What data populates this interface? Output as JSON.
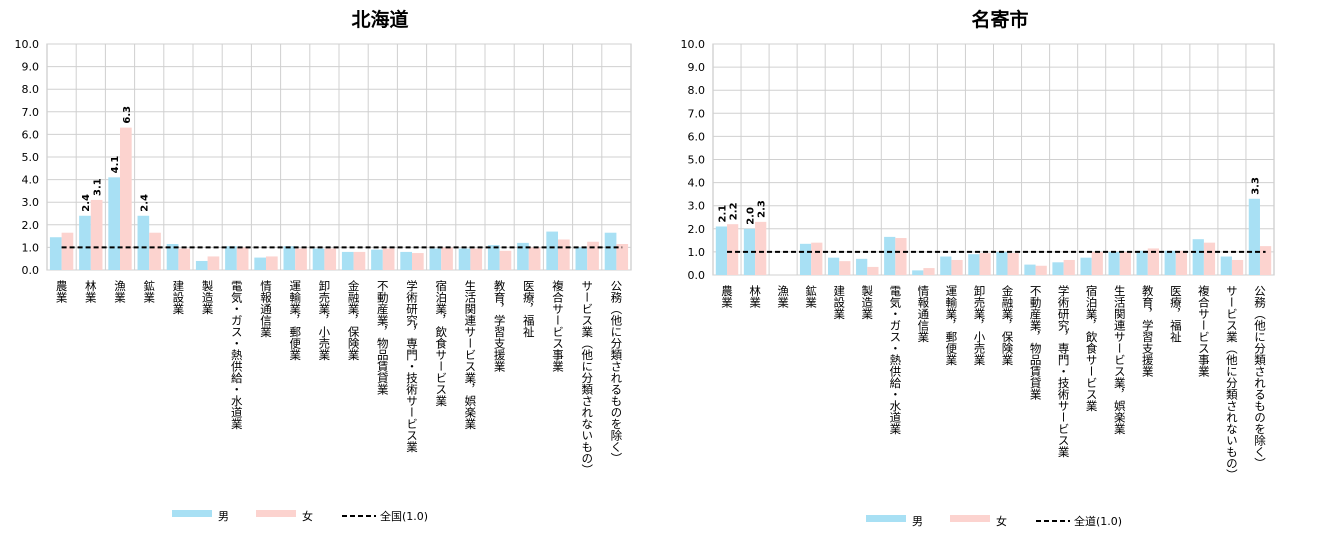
{
  "chart_data": [
    {
      "type": "bar",
      "title": "北海道",
      "categories": [
        "農業",
        "林業",
        "漁業",
        "鉱業",
        "建設業",
        "製造業",
        "電気・ガス・熱供給・水道業",
        "情報通信業",
        "運輸業，郵便業",
        "卸売業，小売業",
        "金融業，保険業",
        "不動産業，物品賃貸業",
        "学術研究，専門・技術サービス業",
        "宿泊業，飲食サービス業",
        "生活関連サービス業，娯楽業",
        "教育，学習支援業",
        "医療，福祉",
        "複合サービス事業",
        "サービス業（他に分類されないもの）",
        "公務（他に分類されるものを除く）"
      ],
      "series": [
        {
          "name": "男",
          "color": "#a8e0f4",
          "values": [
            1.45,
            2.4,
            4.1,
            2.4,
            1.15,
            0.4,
            1.05,
            0.55,
            1.05,
            0.95,
            0.8,
            0.9,
            0.8,
            0.95,
            0.95,
            1.1,
            1.2,
            1.7,
            1.0,
            1.65
          ]
        },
        {
          "name": "女",
          "color": "#fcd3cf",
          "values": [
            1.65,
            3.1,
            6.3,
            1.65,
            0.95,
            0.6,
            1.0,
            0.6,
            0.95,
            0.95,
            0.8,
            0.95,
            0.75,
            1.0,
            0.95,
            0.85,
            1.0,
            1.35,
            1.25,
            1.15
          ]
        }
      ],
      "data_labels": [
        {
          "series": 0,
          "index": 1,
          "text": "2.4"
        },
        {
          "series": 1,
          "index": 1,
          "text": "3.1"
        },
        {
          "series": 0,
          "index": 2,
          "text": "4.1"
        },
        {
          "series": 1,
          "index": 2,
          "text": "6.3"
        },
        {
          "series": 0,
          "index": 3,
          "text": "2.4"
        }
      ],
      "reference_line": {
        "value": 1.0,
        "label": "全国(1.0)"
      },
      "ylim": [
        0,
        10
      ],
      "yticks": [
        "0.0",
        "1.0",
        "2.0",
        "3.0",
        "4.0",
        "5.0",
        "6.0",
        "7.0",
        "8.0",
        "9.0",
        "10.0"
      ],
      "grid": true,
      "legend": "bottom"
    },
    {
      "type": "bar",
      "title": "名寄市",
      "categories": [
        "農業",
        "林業",
        "漁業",
        "鉱業",
        "建設業",
        "製造業",
        "電気・ガス・熱供給・水道業",
        "情報通信業",
        "運輸業，郵便業",
        "卸売業，小売業",
        "金融業，保険業",
        "不動産業，物品賃貸業",
        "学術研究，専門・技術サービス業",
        "宿泊業，飲食サービス業",
        "生活関連サービス業，娯楽業",
        "教育，学習支援業",
        "医療，福祉",
        "複合サービス事業",
        "サービス業（他に分類されないもの）",
        "公務（他に分類されるものを除く）"
      ],
      "series": [
        {
          "name": "男",
          "color": "#a8e0f4",
          "values": [
            2.1,
            2.0,
            0,
            1.35,
            0.75,
            0.7,
            1.65,
            0.2,
            0.8,
            0.9,
            1.0,
            0.45,
            0.55,
            0.75,
            1.0,
            1.05,
            1.05,
            1.55,
            0.8,
            3.3
          ]
        },
        {
          "name": "女",
          "color": "#fcd3cf",
          "values": [
            2.2,
            2.3,
            0,
            1.4,
            0.6,
            0.35,
            1.6,
            0.3,
            0.65,
            0.95,
            0.95,
            0.4,
            0.65,
            1.0,
            1.0,
            1.15,
            1.05,
            1.4,
            0.65,
            1.25
          ]
        }
      ],
      "data_labels": [
        {
          "series": 0,
          "index": 0,
          "text": "2.1"
        },
        {
          "series": 1,
          "index": 0,
          "text": "2.2"
        },
        {
          "series": 0,
          "index": 1,
          "text": "2.0"
        },
        {
          "series": 1,
          "index": 1,
          "text": "2.3"
        },
        {
          "series": 0,
          "index": 19,
          "text": "3.3"
        }
      ],
      "reference_line": {
        "value": 1.0,
        "label": "全道(1.0)"
      },
      "ylim": [
        0,
        10
      ],
      "yticks": [
        "0.0",
        "1.0",
        "2.0",
        "3.0",
        "4.0",
        "5.0",
        "6.0",
        "7.0",
        "8.0",
        "9.0",
        "10.0"
      ],
      "grid": true,
      "legend": "bottom"
    }
  ]
}
